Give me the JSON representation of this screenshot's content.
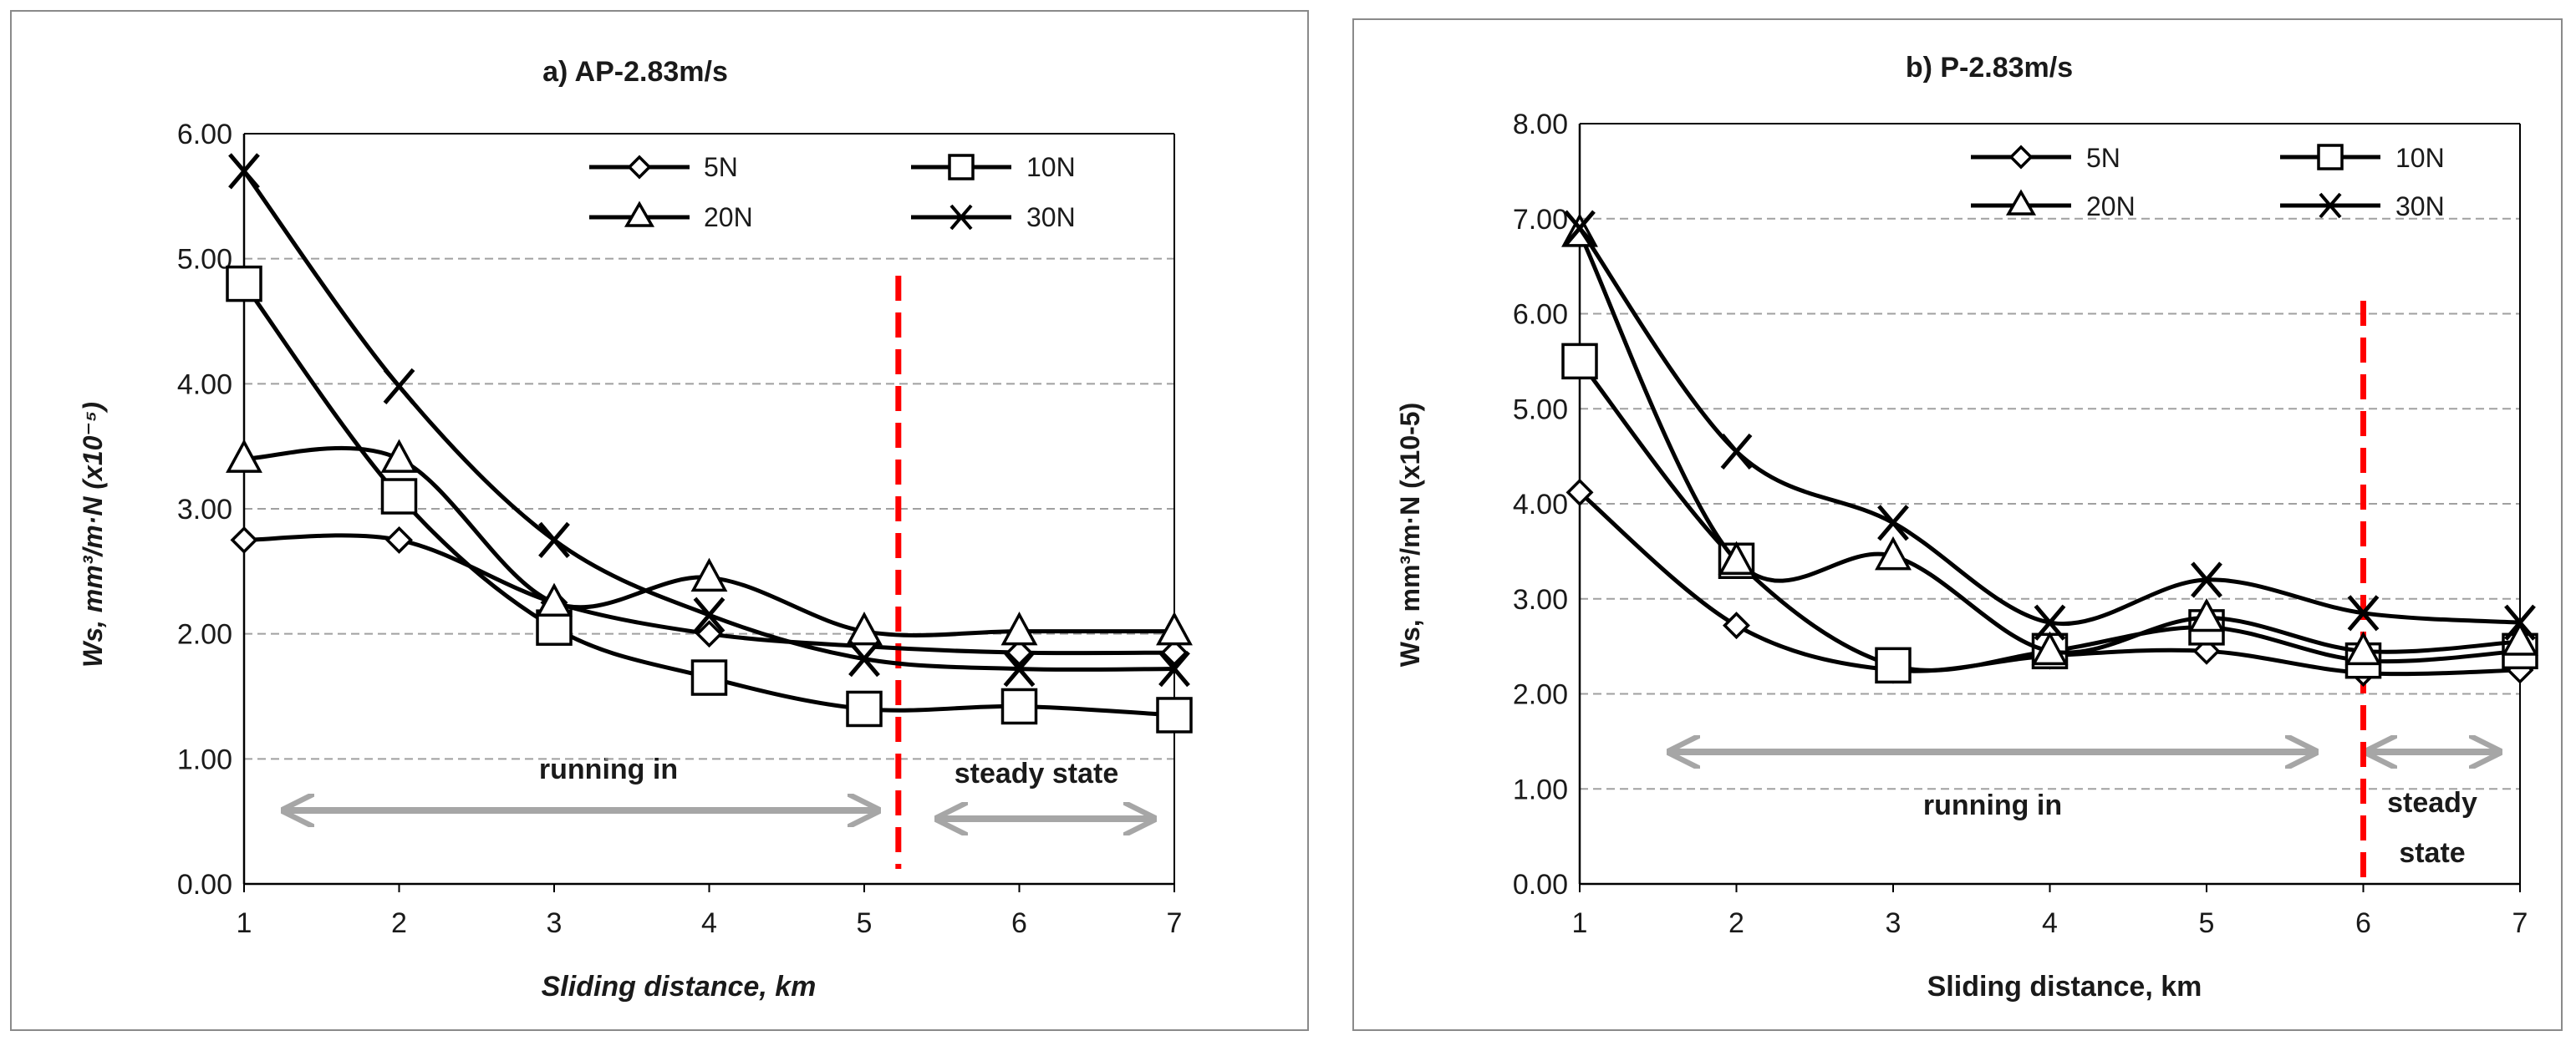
{
  "chart_data": [
    {
      "type": "line",
      "title": "a) AP-2.83m/s",
      "xlabel": "Sliding distance, km",
      "ylabel": "Ws, mm³/m·N  (x10⁻⁵)",
      "x": [
        1,
        2,
        3,
        4,
        5,
        6,
        7
      ],
      "xlim": [
        1,
        7
      ],
      "ylim": [
        0,
        6
      ],
      "ytick_labels": [
        "0.00",
        "1.00",
        "2.00",
        "3.00",
        "4.00",
        "5.00",
        "6.00"
      ],
      "xtick_labels": [
        "1",
        "2",
        "3",
        "4",
        "5",
        "6",
        "7"
      ],
      "series": [
        {
          "name": "5N",
          "marker": "diamond",
          "values": [
            2.75,
            2.75,
            2.25,
            2.0,
            1.9,
            1.85,
            1.85
          ]
        },
        {
          "name": "10N",
          "marker": "square",
          "values": [
            4.8,
            3.1,
            2.05,
            1.65,
            1.4,
            1.42,
            1.35
          ]
        },
        {
          "name": "20N",
          "marker": "triangle",
          "values": [
            3.4,
            3.4,
            2.25,
            2.45,
            2.02,
            2.02,
            2.02
          ]
        },
        {
          "name": "30N",
          "marker": "x",
          "values": [
            5.7,
            3.98,
            2.75,
            2.15,
            1.8,
            1.72,
            1.72
          ]
        }
      ],
      "divider_x": 5.22,
      "annotations": {
        "running_in": "running in",
        "steady_state": "steady state"
      }
    },
    {
      "type": "line",
      "title": "b) P-2.83m/s",
      "xlabel": "Sliding distance, km",
      "ylabel": "Ws, mm³/m·N (x10-5)",
      "x": [
        1,
        2,
        3,
        4,
        5,
        6,
        7
      ],
      "xlim": [
        1,
        7
      ],
      "ylim": [
        0,
        8
      ],
      "ytick_labels": [
        "0.00",
        "1.00",
        "2.00",
        "3.00",
        "4.00",
        "5.00",
        "6.00",
        "7.00",
        "8.00"
      ],
      "xtick_labels": [
        "1",
        "2",
        "3",
        "4",
        "5",
        "6",
        "7"
      ],
      "series": [
        {
          "name": "5N",
          "marker": "diamond",
          "values": [
            4.12,
            2.72,
            2.25,
            2.4,
            2.45,
            2.22,
            2.25
          ]
        },
        {
          "name": "10N",
          "marker": "square",
          "values": [
            5.5,
            3.4,
            2.3,
            2.45,
            2.7,
            2.35,
            2.45
          ]
        },
        {
          "name": "20N",
          "marker": "triangle",
          "values": [
            6.85,
            3.4,
            3.45,
            2.45,
            2.8,
            2.45,
            2.55
          ]
        },
        {
          "name": "30N",
          "marker": "x",
          "values": [
            6.9,
            4.55,
            3.8,
            2.75,
            3.2,
            2.85,
            2.75
          ]
        }
      ],
      "divider_x": 6.0,
      "annotations": {
        "running_in": "running in",
        "steady_state_1": "steady",
        "steady_state_2": "state"
      }
    }
  ]
}
